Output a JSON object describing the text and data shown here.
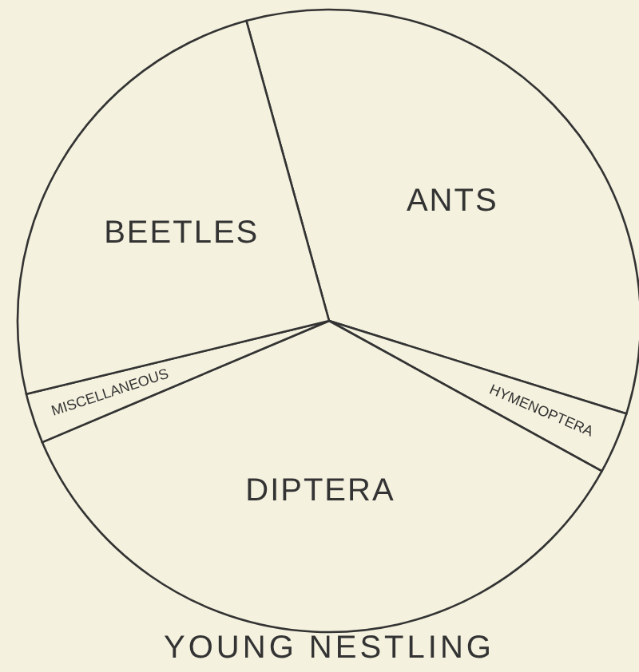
{
  "chart_data": {
    "type": "pie",
    "title": "YOUNG NESTLING",
    "categories": [
      "ANTS",
      "HYMENOPTERA",
      "DIPTERA",
      "MISCELLANEOUS",
      "BEETLES"
    ],
    "values": [
      34.1,
      3.2,
      35.6,
      2.6,
      24.5
    ],
    "colors": [
      "#f4f1de",
      "#f4f1de",
      "#f4f1de",
      "#f4f1de",
      "#f4f1de"
    ]
  }
}
